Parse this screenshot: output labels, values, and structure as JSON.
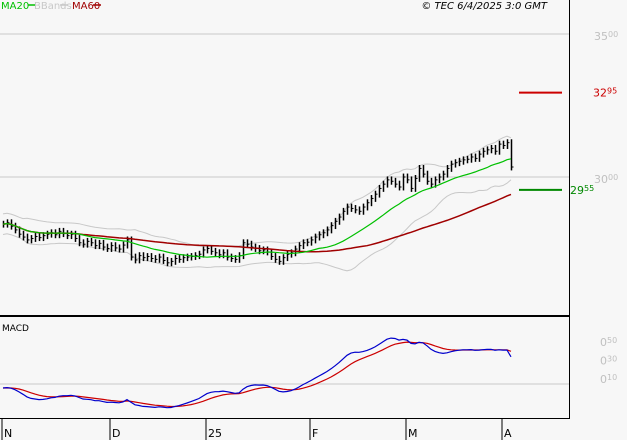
{
  "legend": {
    "ma20": "MA20",
    "bbands": "BBands",
    "ma60": "MA60",
    "copyright": "© TEC 6/4/2025 3:0 GMT"
  },
  "colors": {
    "ma20": "#00c000",
    "bbands": "#c8c8c8",
    "ma60": "#a00000",
    "macd": "#0000cc",
    "signal": "#cc0000",
    "resistance": "#cc0000",
    "support": "#008800"
  },
  "price_axis": {
    "ticks": [
      {
        "value": 3500,
        "big": "35",
        "small": "00"
      },
      {
        "value": 3000,
        "big": "30",
        "small": "00"
      }
    ]
  },
  "levels": {
    "resistance": {
      "value": 3295,
      "big": "32",
      "small": "95"
    },
    "support": {
      "value": 2955,
      "big": "29",
      "small": "55"
    }
  },
  "macd_panel": {
    "title": "MACD",
    "ticks": [
      {
        "value": 50,
        "big": "0",
        "small": "50"
      },
      {
        "value": 30,
        "big": "0",
        "small": "30"
      },
      {
        "value": 10,
        "big": "0",
        "small": "10"
      }
    ]
  },
  "x_axis": {
    "labels": [
      {
        "label": "N",
        "bar": 0
      },
      {
        "label": "D",
        "bar": 27
      },
      {
        "label": "25",
        "bar": 51
      },
      {
        "label": "F",
        "bar": 77
      },
      {
        "label": "M",
        "bar": 101
      },
      {
        "label": "A",
        "bar": 125
      }
    ]
  },
  "chart_data": {
    "type": "bar",
    "title": "",
    "ylim": [
      2650,
      3600
    ],
    "close": [
      2835,
      2840,
      2828,
      2815,
      2800,
      2790,
      2780,
      2785,
      2792,
      2788,
      2795,
      2800,
      2805,
      2798,
      2810,
      2802,
      2795,
      2800,
      2785,
      2770,
      2765,
      2775,
      2770,
      2760,
      2768,
      2755,
      2750,
      2760,
      2752,
      2748,
      2762,
      2780,
      2720,
      2710,
      2725,
      2718,
      2722,
      2715,
      2712,
      2720,
      2708,
      2700,
      2705,
      2715,
      2712,
      2718,
      2720,
      2722,
      2725,
      2730,
      2745,
      2750,
      2740,
      2735,
      2728,
      2735,
      2720,
      2715,
      2712,
      2725,
      2770,
      2765,
      2755,
      2750,
      2742,
      2745,
      2738,
      2722,
      2712,
      2705,
      2718,
      2730,
      2735,
      2748,
      2760,
      2770,
      2772,
      2780,
      2790,
      2798,
      2805,
      2815,
      2830,
      2845,
      2860,
      2880,
      2895,
      2890,
      2885,
      2880,
      2895,
      2910,
      2925,
      2940,
      2960,
      2975,
      2990,
      2985,
      2975,
      2965,
      3000,
      2990,
      2960,
      2995,
      3030,
      3010,
      2985,
      2975,
      2990,
      3000,
      3010,
      3030,
      3045,
      3050,
      3055,
      3060,
      3062,
      3070,
      3065,
      3080,
      3090,
      3095,
      3100,
      3090,
      3115,
      3110,
      3120,
      3035
    ]
  }
}
